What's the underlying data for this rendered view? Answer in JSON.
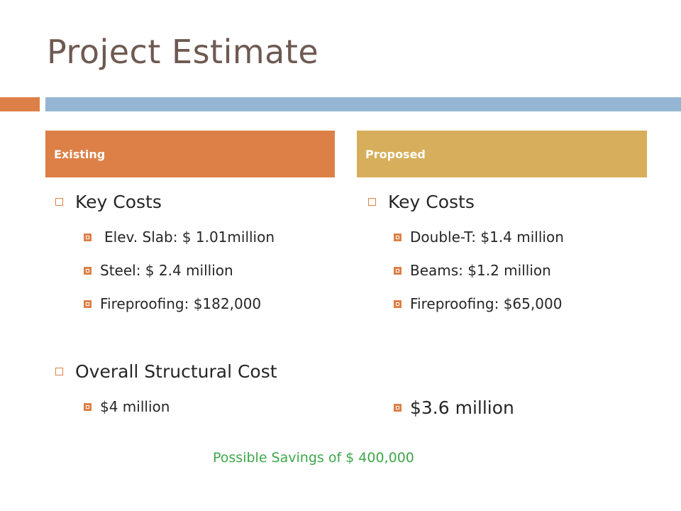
{
  "title": "Project Estimate",
  "existing": {
    "header": "Existing",
    "key_costs_label": "Key Costs",
    "items": [
      "Elev. Slab: $ 1.01million",
      "Steel: $ 2.4 million",
      "Fireproofing: $182,000"
    ],
    "overall_label": "Overall Structural Cost",
    "overall_value": "$4 million"
  },
  "proposed": {
    "header": "Proposed",
    "key_costs_label": "Key Costs",
    "items": [
      "Double-T: $1.4 million",
      "Beams: $1.2 million",
      "Fireproofing: $65,000"
    ],
    "overall_value": "$3.6 million"
  },
  "savings": "Possible Savings of $ 400,000",
  "colors": {
    "accent_orange": "#dd8047",
    "accent_gold": "#d7ae5b",
    "accent_blue": "#94b6d2",
    "title": "#6e5a52",
    "savings_green": "#3ea74a"
  }
}
